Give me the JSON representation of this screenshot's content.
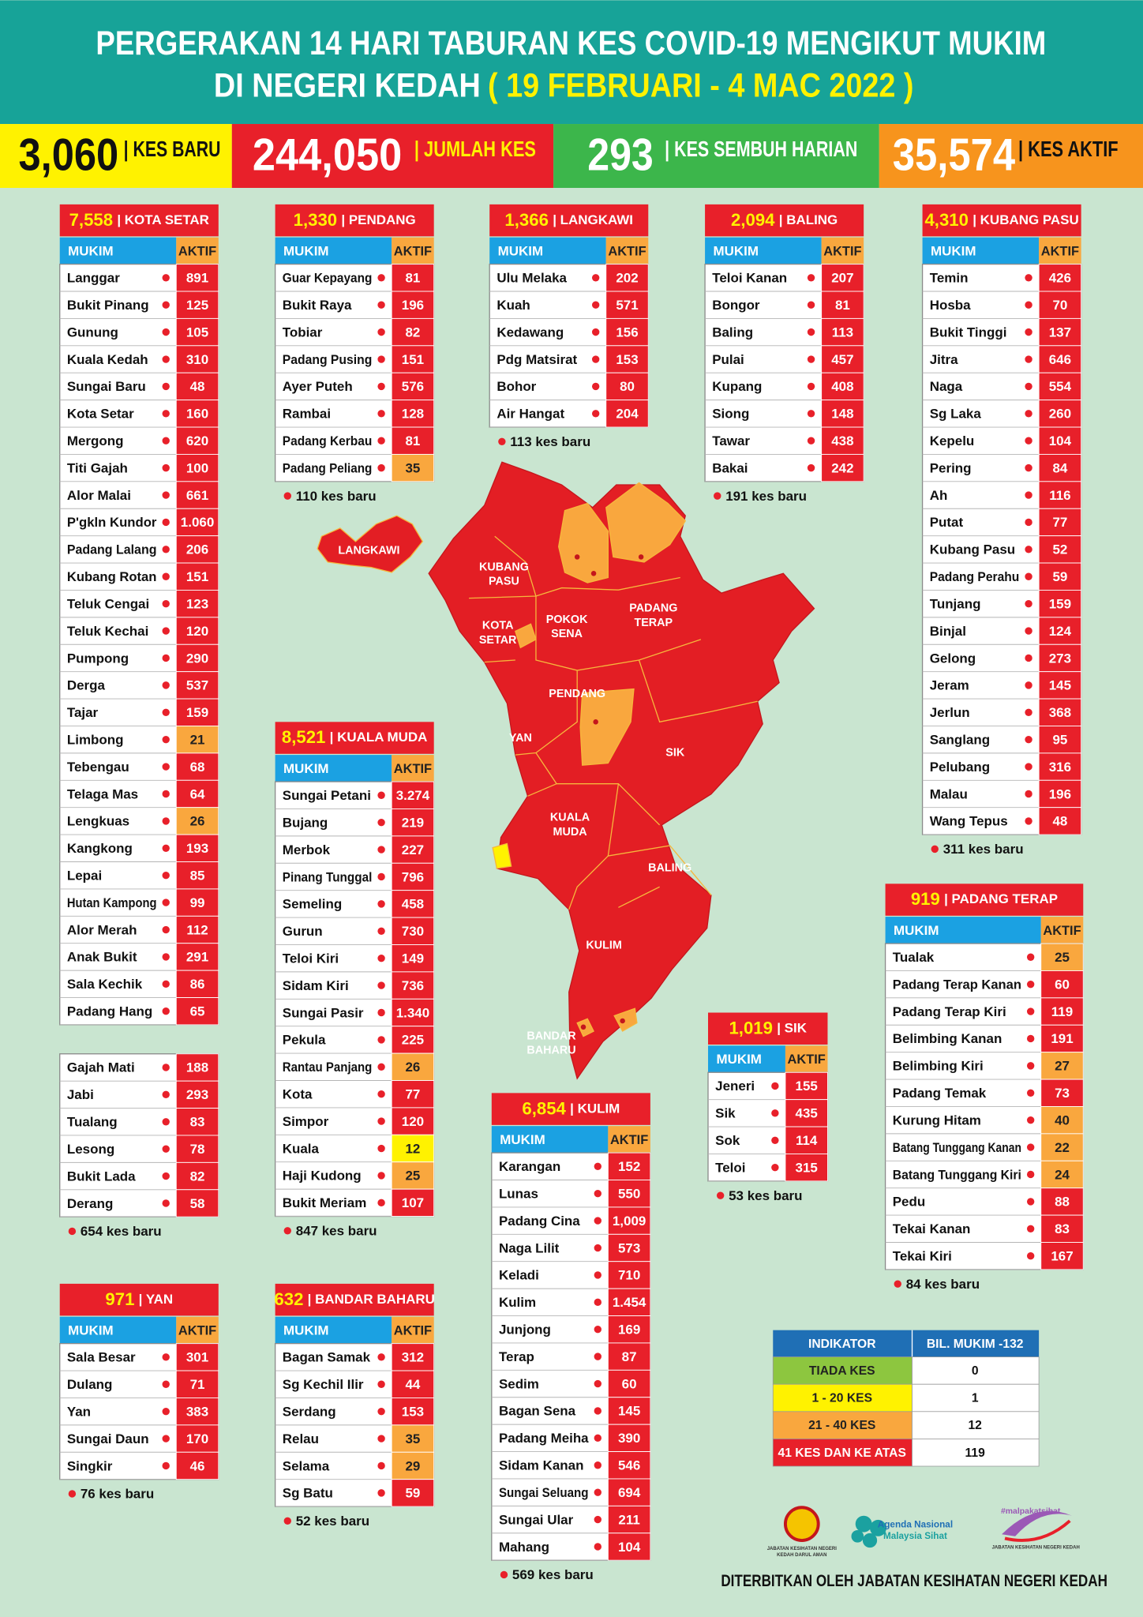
{
  "header": {
    "title_line1": "PERGERAKAN 14 HARI TABURAN KES COVID-19 MENGIKUT MUKIM",
    "title_line2": "DI NEGERI KEDAH",
    "date_range": "( 19 FEBRUARI - 4 MAC 2022 )"
  },
  "summary": [
    {
      "value": "3,060",
      "label": "| KES BARU",
      "color": "#fff200"
    },
    {
      "value": "244,050",
      "label": "| JUMLAH KES",
      "color": "#e8202a"
    },
    {
      "value": "293",
      "label": "| KES SEMBUH HARIAN",
      "color": "#3cb64b"
    },
    {
      "value": "35,574",
      "label": "| KES AKTIF",
      "color": "#f7941d"
    }
  ],
  "table_headers": {
    "mukim": "MUKIM",
    "aktif": "AKTIF"
  },
  "districts": [
    {
      "total": "7,558",
      "name": "| KOTA SETAR",
      "rows": [
        [
          "Langgar",
          "891"
        ],
        [
          "Bukit Pinang",
          "125"
        ],
        [
          "Gunung",
          "105"
        ],
        [
          "Kuala Kedah",
          "310"
        ],
        [
          "Sungai Baru",
          "48"
        ],
        [
          "Kota Setar",
          "160"
        ],
        [
          "Mergong",
          "620"
        ],
        [
          "Titi Gajah",
          "100"
        ],
        [
          "Alor Malai",
          "661"
        ],
        [
          "P'gkln Kundor",
          "1.060"
        ],
        [
          "Padang Lalang",
          "206"
        ],
        [
          "Kubang Rotan",
          "151"
        ],
        [
          "Teluk Cengai",
          "123"
        ],
        [
          "Teluk Kechai",
          "120"
        ],
        [
          "Pumpong",
          "290"
        ],
        [
          "Derga",
          "537"
        ],
        [
          "Tajar",
          "159"
        ],
        [
          "Limbong",
          "21",
          "#f9a73e"
        ],
        [
          "Tebengau",
          "68"
        ],
        [
          "Telaga Mas",
          "64"
        ],
        [
          "Lengkuas",
          "26",
          "#f9a73e"
        ],
        [
          "Kangkong",
          "193"
        ],
        [
          "Lepai",
          "85"
        ],
        [
          "Hutan Kampong",
          "99"
        ],
        [
          "Alor Merah",
          "112"
        ],
        [
          "Anak Bukit",
          "291"
        ],
        [
          "Sala Kechik",
          "86"
        ],
        [
          "Padang Hang",
          "65"
        ]
      ],
      "rows_continued": [
        [
          "Gajah Mati",
          "188"
        ],
        [
          "Jabi",
          "293"
        ],
        [
          "Tualang",
          "83"
        ],
        [
          "Lesong",
          "78"
        ],
        [
          "Bukit Lada",
          "82"
        ],
        [
          "Derang",
          "58"
        ]
      ],
      "new_cases": "654 kes baru"
    },
    {
      "total": "1,330",
      "name": "| PENDANG",
      "rows": [
        [
          "Guar Kepayang",
          "81"
        ],
        [
          "Bukit Raya",
          "196"
        ],
        [
          "Tobiar",
          "82"
        ],
        [
          "Padang Pusing",
          "151"
        ],
        [
          "Ayer Puteh",
          "576"
        ],
        [
          "Rambai",
          "128"
        ],
        [
          "Padang Kerbau",
          "81"
        ],
        [
          "Padang Peliang",
          "35",
          "#f9a73e"
        ]
      ],
      "new_cases": "110 kes baru"
    },
    {
      "total": "1,366",
      "name": "| LANGKAWI",
      "rows": [
        [
          "Ulu Melaka",
          "202"
        ],
        [
          "Kuah",
          "571"
        ],
        [
          "Kedawang",
          "156"
        ],
        [
          "Pdg Matsirat",
          "153"
        ],
        [
          "Bohor",
          "80"
        ],
        [
          "Air Hangat",
          "204"
        ]
      ],
      "new_cases": "113 kes baru"
    },
    {
      "total": "2,094",
      "name": "| BALING",
      "rows": [
        [
          "Teloi Kanan",
          "207"
        ],
        [
          "Bongor",
          "81"
        ],
        [
          "Baling",
          "113"
        ],
        [
          "Pulai",
          "457"
        ],
        [
          "Kupang",
          "408"
        ],
        [
          "Siong",
          "148"
        ],
        [
          "Tawar",
          "438"
        ],
        [
          "Bakai",
          "242"
        ]
      ],
      "new_cases": "191 kes baru"
    },
    {
      "total": "4,310",
      "name": "| KUBANG PASU",
      "rows": [
        [
          "Temin",
          "426"
        ],
        [
          "Hosba",
          "70"
        ],
        [
          "Bukit Tinggi",
          "137"
        ],
        [
          "Jitra",
          "646"
        ],
        [
          "Naga",
          "554"
        ],
        [
          "Sg Laka",
          "260"
        ],
        [
          "Kepelu",
          "104"
        ],
        [
          "Pering",
          "84"
        ],
        [
          "Ah",
          "116"
        ],
        [
          "Putat",
          "77"
        ],
        [
          "Kubang Pasu",
          "52"
        ],
        [
          "Padang Perahu",
          "59"
        ],
        [
          "Tunjang",
          "159"
        ],
        [
          "Binjal",
          "124"
        ],
        [
          "Gelong",
          "273"
        ],
        [
          "Jeram",
          "145"
        ],
        [
          "Jerlun",
          "368"
        ],
        [
          "Sanglang",
          "95"
        ],
        [
          "Pelubang",
          "316"
        ],
        [
          "Malau",
          "196"
        ],
        [
          "Wang Tepus",
          "48"
        ]
      ],
      "new_cases": "311 kes baru"
    },
    {
      "total": "8,521",
      "name": "| KUALA MUDA",
      "rows": [
        [
          "Sungai Petani",
          "3.274"
        ],
        [
          "Bujang",
          "219"
        ],
        [
          "Merbok",
          "227"
        ],
        [
          "Pinang Tunggal",
          "796"
        ],
        [
          "Semeling",
          "458"
        ],
        [
          "Gurun",
          "730"
        ],
        [
          "Teloi Kiri",
          "149"
        ],
        [
          "Sidam Kiri",
          "736"
        ],
        [
          "Sungai Pasir",
          "1.340"
        ],
        [
          "Pekula",
          "225"
        ],
        [
          "Rantau Panjang",
          "26",
          "#f9a73e"
        ],
        [
          "Kota",
          "77"
        ],
        [
          "Simpor",
          "120"
        ],
        [
          "Kuala",
          "12",
          "#fff200"
        ],
        [
          "Haji Kudong",
          "25",
          "#f9a73e"
        ],
        [
          "Bukit Meriam",
          "107"
        ]
      ],
      "new_cases": "847 kes baru"
    },
    {
      "total": "919",
      "name": "| PADANG TERAP",
      "rows": [
        [
          "Tualak",
          "25",
          "#f9a73e"
        ],
        [
          "Padang Terap Kanan",
          "60"
        ],
        [
          "Padang Terap Kiri",
          "119"
        ],
        [
          "Belimbing Kanan",
          "191"
        ],
        [
          "Belimbing Kiri",
          "27",
          "#f9a73e"
        ],
        [
          "Padang Temak",
          "73"
        ],
        [
          "Kurung Hitam",
          "40",
          "#f9a73e"
        ],
        [
          "Batang Tunggang Kanan",
          "22",
          "#f9a73e"
        ],
        [
          "Batang Tunggang Kiri",
          "24",
          "#f9a73e"
        ],
        [
          "Pedu",
          "88"
        ],
        [
          "Tekai Kanan",
          "83"
        ],
        [
          "Tekai Kiri",
          "167"
        ]
      ],
      "new_cases": "84 kes baru"
    },
    {
      "total": "1,019",
      "name": "| SIK",
      "rows": [
        [
          "Jeneri",
          "155"
        ],
        [
          "Sik",
          "435"
        ],
        [
          "Sok",
          "114"
        ],
        [
          "Teloi",
          "315"
        ]
      ],
      "new_cases": "53 kes baru"
    },
    {
      "total": "6,854",
      "name": "| KULIM",
      "rows": [
        [
          "Karangan",
          "152"
        ],
        [
          "Lunas",
          "550"
        ],
        [
          "Padang Cina",
          "1,009"
        ],
        [
          "Naga Lilit",
          "573"
        ],
        [
          "Keladi",
          "710"
        ],
        [
          "Kulim",
          "1.454"
        ],
        [
          "Junjong",
          "169"
        ],
        [
          "Terap",
          "87"
        ],
        [
          "Sedim",
          "60"
        ],
        [
          "Bagan Sena",
          "145"
        ],
        [
          "Padang Meiha",
          "390"
        ],
        [
          "Sidam Kanan",
          "546"
        ],
        [
          "Sungai Seluang",
          "694"
        ],
        [
          "Sungai Ular",
          "211"
        ],
        [
          "Mahang",
          "104"
        ]
      ],
      "new_cases": "569 kes baru"
    },
    {
      "total": "971",
      "name": "| YAN",
      "rows": [
        [
          "Sala Besar",
          "301"
        ],
        [
          "Dulang",
          "71"
        ],
        [
          "Yan",
          "383"
        ],
        [
          "Sungai Daun",
          "170"
        ],
        [
          "Singkir",
          "46"
        ]
      ],
      "new_cases": "76 kes baru"
    },
    {
      "total": "632",
      "name": "| BANDAR BAHARU",
      "rows": [
        [
          "Bagan Samak",
          "312"
        ],
        [
          "Sg Kechil Ilir",
          "44"
        ],
        [
          "Serdang",
          "153"
        ],
        [
          "Relau",
          "35",
          "#f9a73e"
        ],
        [
          "Selama",
          "29",
          "#f9a73e"
        ],
        [
          "Sg Batu",
          "59"
        ]
      ],
      "new_cases": "52 kes baru"
    }
  ],
  "map_labels": [
    [
      "LANGKAWI"
    ],
    [
      "KUBANG",
      "PASU"
    ],
    [
      "KOTA",
      "SETAR"
    ],
    [
      "POKOK",
      "SENA"
    ],
    [
      "PADANG",
      "TERAP"
    ],
    [
      "PENDANG"
    ],
    [
      "YAN"
    ],
    [
      "SIK"
    ],
    [
      "KUALA",
      "MUDA"
    ],
    [
      "BALING"
    ],
    [
      "KULIM"
    ],
    [
      "BANDAR",
      "BAHARU"
    ]
  ],
  "indicator": {
    "headers": [
      "INDIKATOR",
      "BIL. MUKIM -132"
    ],
    "rows": [
      {
        "label": "TIADA KES",
        "count": "0",
        "color": "#8dc63f"
      },
      {
        "label": "1 - 20 KES",
        "count": "1",
        "color": "#fff200"
      },
      {
        "label": "21 - 40 KES",
        "count": "12",
        "color": "#f9a73e"
      },
      {
        "label": "41 KES DAN KE ATAS",
        "count": "119",
        "color": "#e8202a"
      }
    ]
  },
  "logos": {
    "jkn_line1": "JABATAN KESIHATAN NEGERI",
    "jkn_line2": "KEDAH DARUL AMAN",
    "agenda_line1": "Agenda Nasional",
    "agenda_line2": "Malaysia Sihat",
    "malpakat": "#malpakatsihat",
    "malpakat_sub": "JABATAN KESIHATAN NEGERI KEDAH"
  },
  "footer": "DITERBITKAN OLEH JABATAN KESIHATAN NEGERI KEDAH"
}
